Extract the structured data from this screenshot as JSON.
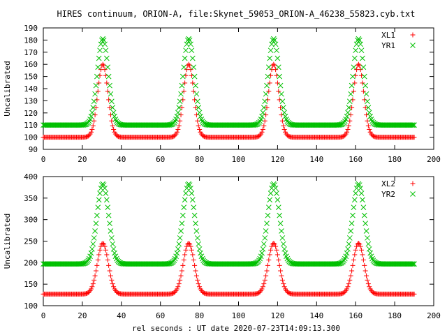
{
  "chart_data": [
    {
      "type": "scatter",
      "title": "HIRES continuum, ORION-A, file:Skynet_59053_ORION-A_46238_55823.cyb.txt",
      "xlabel": "",
      "ylabel": "Uncalibrated",
      "xlim": [
        0,
        200
      ],
      "ylim": [
        90,
        190
      ],
      "xticks": [
        "0",
        "20",
        "40",
        "60",
        "80",
        "100",
        "120",
        "140",
        "160",
        "180",
        "200"
      ],
      "yticks": [
        "90",
        "100",
        "110",
        "120",
        "130",
        "140",
        "150",
        "160",
        "170",
        "180",
        "190"
      ],
      "grid": false,
      "legend_position": "top-right",
      "x_range": [
        0,
        190
      ],
      "x_step": 1,
      "peaks_x": [
        30.5,
        74.5,
        118,
        161.5
      ],
      "series": [
        {
          "name": "XL1",
          "color": "#ff0000",
          "marker": "plus",
          "baseline": 100,
          "peak": 160,
          "peak_width": 2.6
        },
        {
          "name": "YR1",
          "color": "#00c000",
          "marker": "cross",
          "baseline": 110,
          "peak": 181,
          "peak_width": 2.8
        }
      ]
    },
    {
      "type": "scatter",
      "title": "",
      "xlabel": "rel seconds : UT date 2020-07-23T14:09:13.300",
      "ylabel": "Uncalibrated",
      "xlim": [
        0,
        200
      ],
      "ylim": [
        100,
        400
      ],
      "xticks": [
        "0",
        "20",
        "40",
        "60",
        "80",
        "100",
        "120",
        "140",
        "160",
        "180",
        "200"
      ],
      "yticks": [
        "100",
        "150",
        "200",
        "250",
        "300",
        "350",
        "400"
      ],
      "grid": false,
      "legend_position": "top-right",
      "x_range": [
        0,
        190
      ],
      "x_step": 1,
      "peaks_x": [
        30.5,
        74.5,
        118,
        161.5
      ],
      "series": [
        {
          "name": "XL2",
          "color": "#ff0000",
          "marker": "plus",
          "baseline": 127,
          "peak": 245,
          "peak_width": 2.8
        },
        {
          "name": "YR2",
          "color": "#00c000",
          "marker": "cross",
          "baseline": 197,
          "peak": 383,
          "peak_width": 3.0
        }
      ]
    }
  ]
}
